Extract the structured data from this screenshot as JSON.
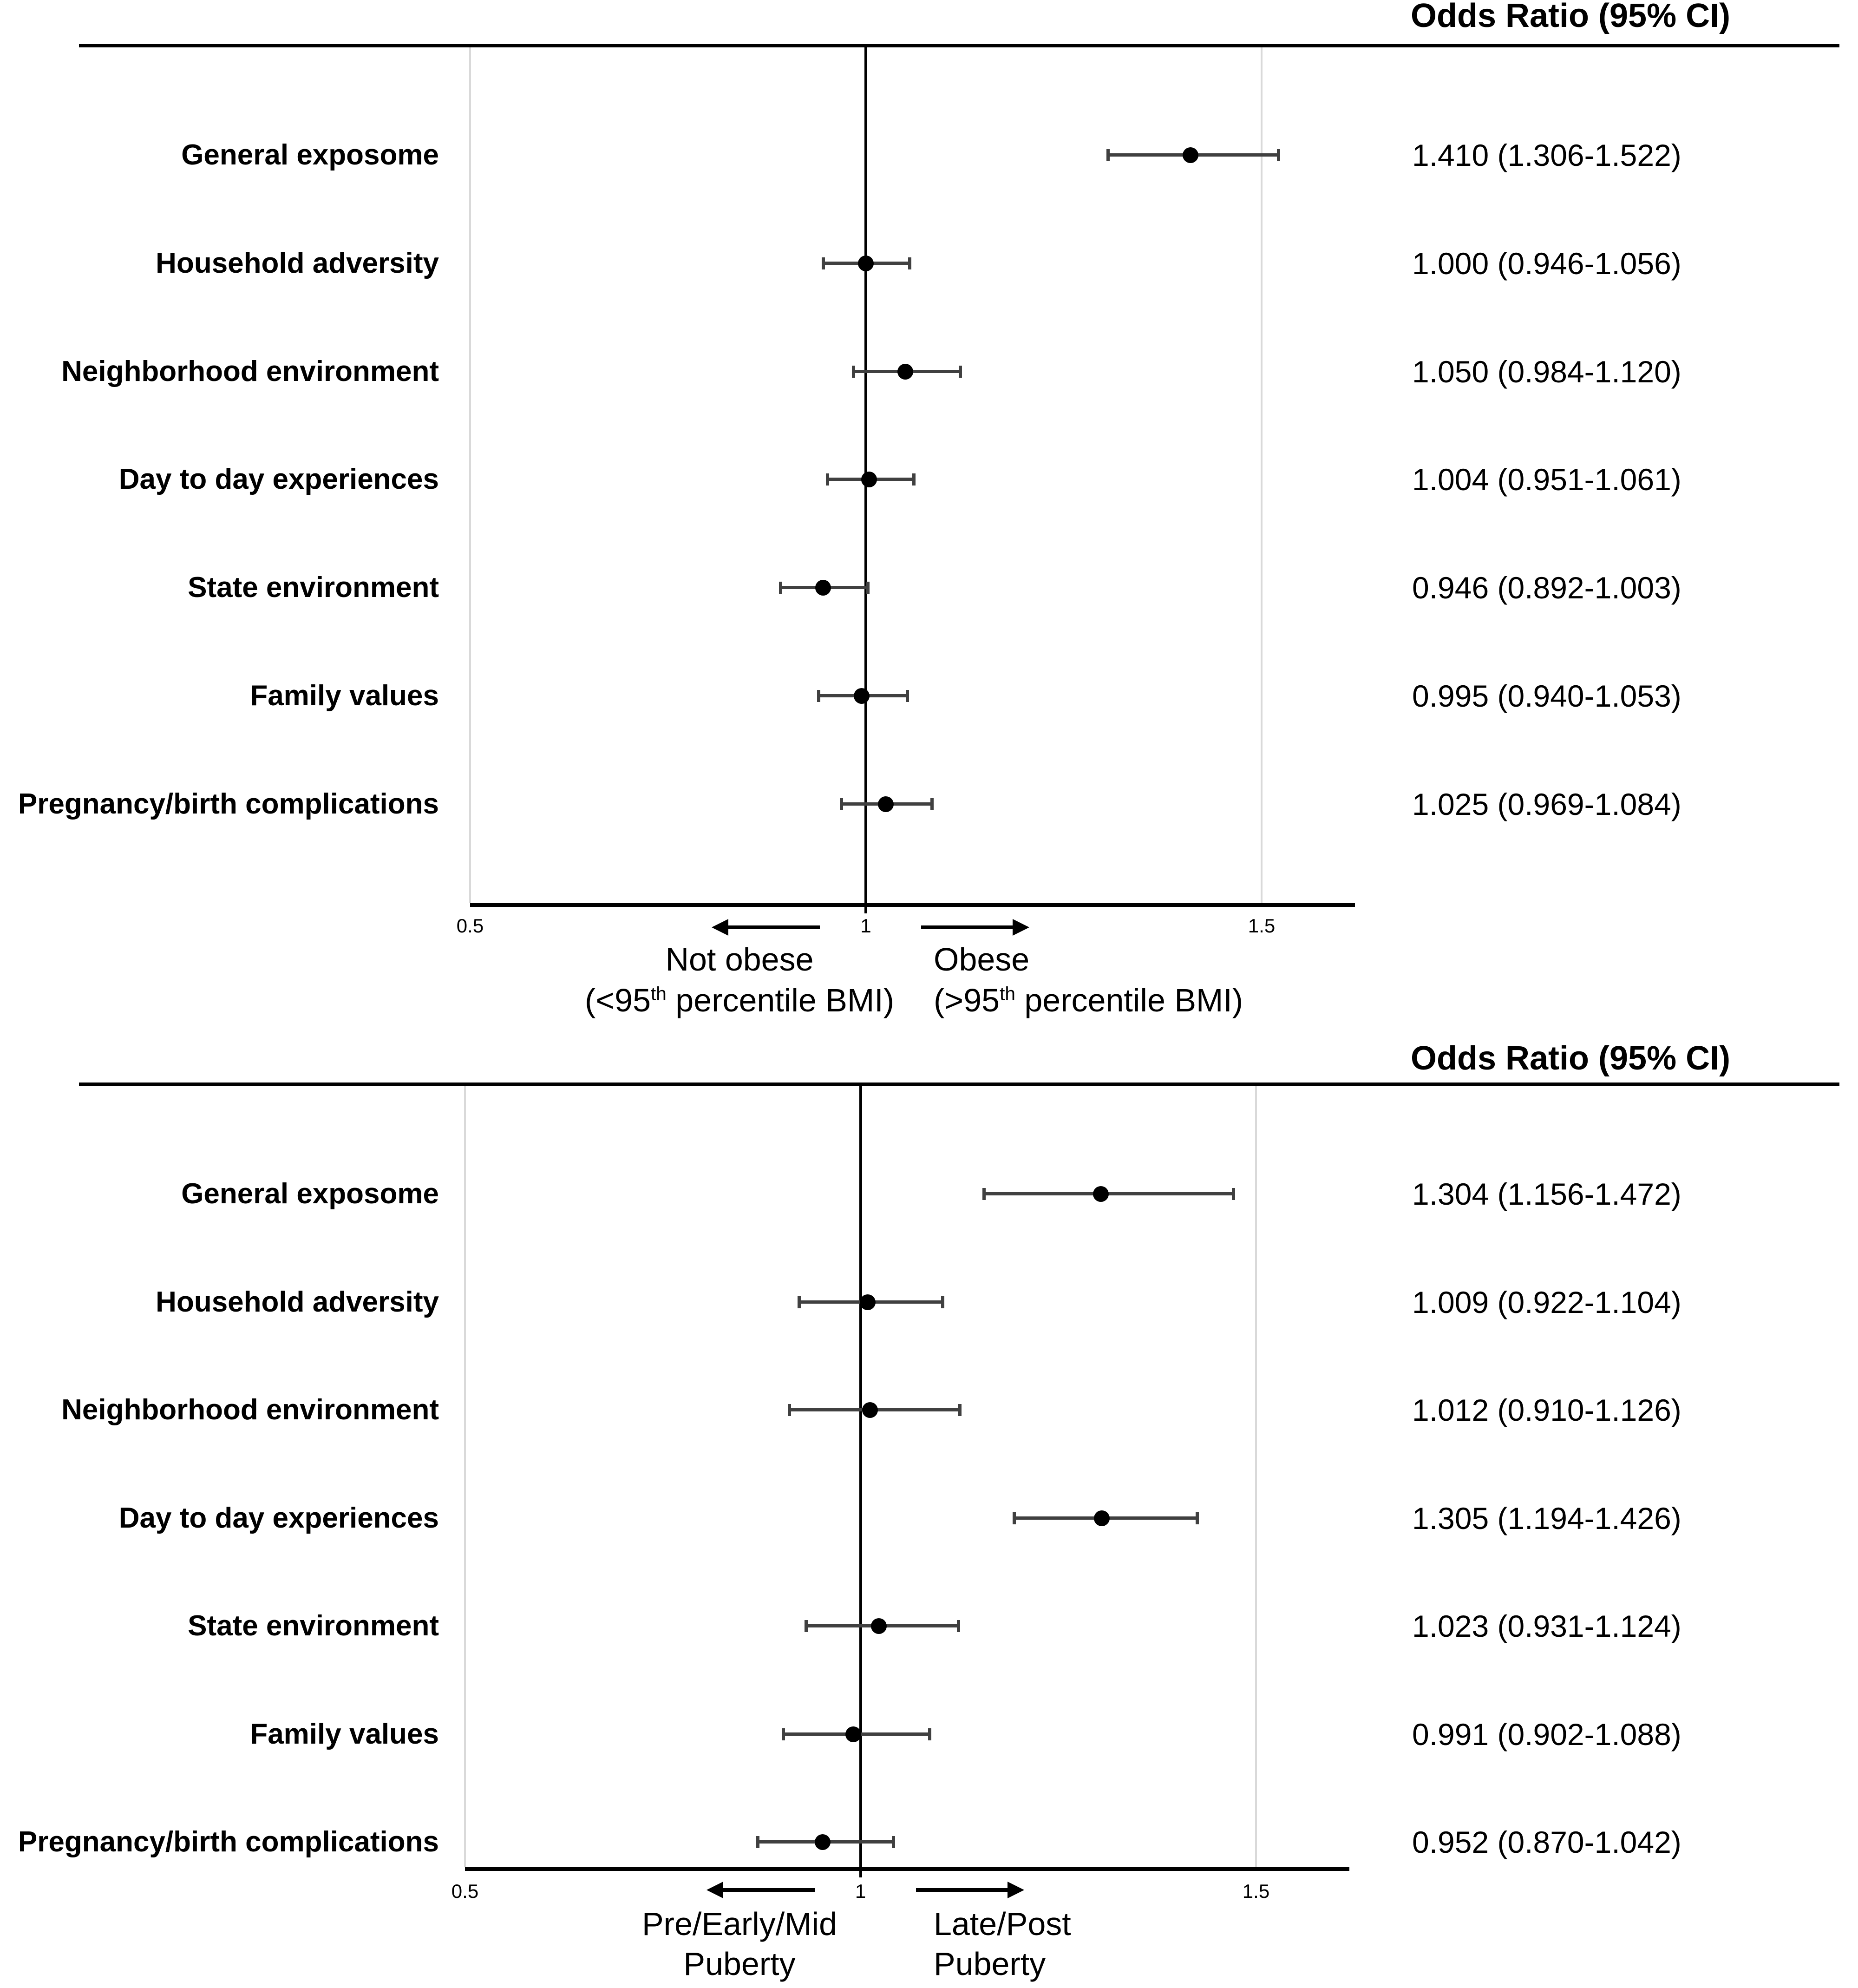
{
  "figure": {
    "background": "#ffffff",
    "text_color": "#000000",
    "whisker_color": "#404040",
    "gridline_color": "#d9d9d9"
  },
  "chart_data": [
    {
      "type": "scatter",
      "subtype": "forest-plot",
      "panel": "obesity-outcome",
      "header": "Odds Ratio (95% CI)",
      "xlim": [
        0.5,
        1.618
      ],
      "grid": "light-vertical-at-0.5-and-1.5",
      "reference_line": 1,
      "gridlines": [
        0.5,
        1.5
      ],
      "ticks": [
        {
          "value": 0.5,
          "label": "0.5"
        },
        {
          "value": 1,
          "label": "1"
        },
        {
          "value": 1.5,
          "label": "1.5"
        }
      ],
      "rows": [
        {
          "label": "General exposome",
          "or": 1.41,
          "ci_low": 1.306,
          "ci_high": 1.522,
          "or_text": "1.410 (1.306-1.522)"
        },
        {
          "label": "Household adversity",
          "or": 1.0,
          "ci_low": 0.946,
          "ci_high": 1.056,
          "or_text": "1.000 (0.946-1.056)"
        },
        {
          "label": "Neighborhood environment",
          "or": 1.05,
          "ci_low": 0.984,
          "ci_high": 1.12,
          "or_text": "1.050 (0.984-1.120)"
        },
        {
          "label": "Day to day experiences",
          "or": 1.004,
          "ci_low": 0.951,
          "ci_high": 1.061,
          "or_text": "1.004 (0.951-1.061)"
        },
        {
          "label": "State environment",
          "or": 0.946,
          "ci_low": 0.892,
          "ci_high": 1.003,
          "or_text": "0.946 (0.892-1.003)"
        },
        {
          "label": "Family values",
          "or": 0.995,
          "ci_low": 0.94,
          "ci_high": 1.053,
          "or_text": "0.995 (0.940-1.053)"
        },
        {
          "label": "Pregnancy/birth complications",
          "or": 1.025,
          "ci_low": 0.969,
          "ci_high": 1.084,
          "or_text": "1.025 (0.969-1.084)"
        }
      ],
      "direction_labels": {
        "left": {
          "lines": [
            [
              {
                "t": "Not obese"
              }
            ],
            [
              {
                "t": "(<95"
              },
              {
                "t": "th",
                "sup": true
              },
              {
                "t": " percentile BMI)"
              }
            ]
          ]
        },
        "right": {
          "lines": [
            [
              {
                "t": "Obese"
              }
            ],
            [
              {
                "t": "(>95"
              },
              {
                "t": "th",
                "sup": true
              },
              {
                "t": " percentile BMI)"
              }
            ]
          ]
        }
      }
    },
    {
      "type": "scatter",
      "subtype": "forest-plot",
      "panel": "puberty-outcome",
      "header": "Odds Ratio (95% CI)",
      "xlim": [
        0.5,
        1.618
      ],
      "grid": "light-vertical-at-0.5-and-1.5",
      "reference_line": 1,
      "gridlines": [
        0.5,
        1.5
      ],
      "ticks": [
        {
          "value": 0.5,
          "label": "0.5"
        },
        {
          "value": 1,
          "label": "1"
        },
        {
          "value": 1.5,
          "label": "1.5"
        }
      ],
      "rows": [
        {
          "label": "General exposome",
          "or": 1.304,
          "ci_low": 1.156,
          "ci_high": 1.472,
          "or_text": "1.304 (1.156-1.472)"
        },
        {
          "label": "Household adversity",
          "or": 1.009,
          "ci_low": 0.922,
          "ci_high": 1.104,
          "or_text": "1.009 (0.922-1.104)"
        },
        {
          "label": "Neighborhood environment",
          "or": 1.012,
          "ci_low": 0.91,
          "ci_high": 1.126,
          "or_text": "1.012 (0.910-1.126)"
        },
        {
          "label": "Day to day experiences",
          "or": 1.305,
          "ci_low": 1.194,
          "ci_high": 1.426,
          "or_text": "1.305 (1.194-1.426)"
        },
        {
          "label": "State environment",
          "or": 1.023,
          "ci_low": 0.931,
          "ci_high": 1.124,
          "or_text": "1.023 (0.931-1.124)"
        },
        {
          "label": "Family values",
          "or": 0.991,
          "ci_low": 0.902,
          "ci_high": 1.088,
          "or_text": "0.991 (0.902-1.088)"
        },
        {
          "label": "Pregnancy/birth complications",
          "or": 0.952,
          "ci_low": 0.87,
          "ci_high": 1.042,
          "or_text": "0.952 (0.870-1.042)"
        }
      ],
      "direction_labels": {
        "left": {
          "lines": [
            [
              {
                "t": "Pre/Early/Mid"
              }
            ],
            [
              {
                "t": "Puberty"
              }
            ]
          ]
        },
        "right": {
          "lines": [
            [
              {
                "t": "Late/Post"
              }
            ],
            [
              {
                "t": "Puberty"
              }
            ]
          ]
        }
      }
    }
  ]
}
